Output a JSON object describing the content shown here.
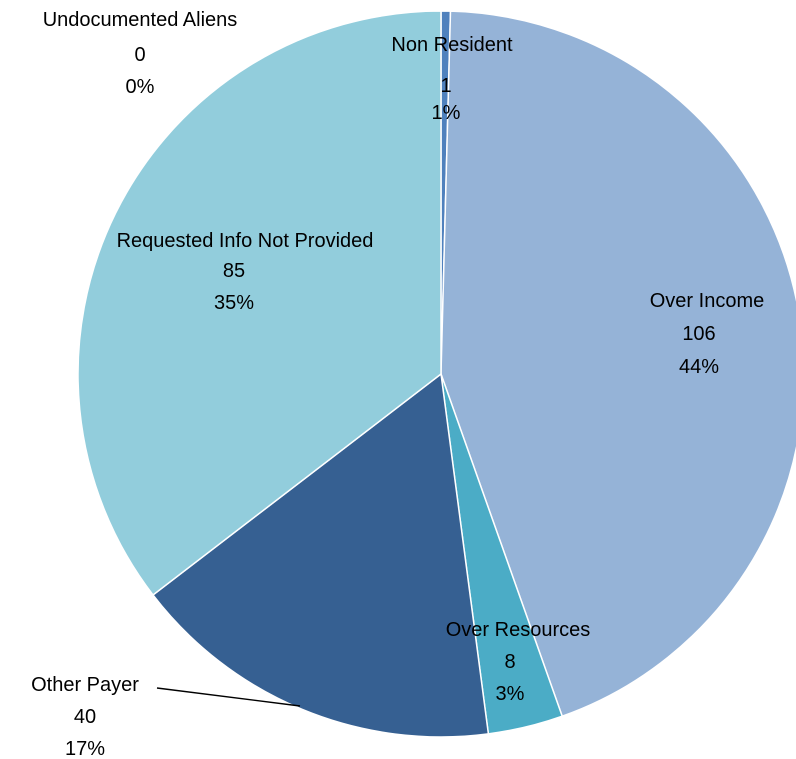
{
  "chart_data": {
    "type": "pie",
    "slices": [
      {
        "name": "Non Resident",
        "value": 1,
        "percent": "1%",
        "color": "#4f81bd"
      },
      {
        "name": "Over Income",
        "value": 106,
        "percent": "44%",
        "color": "#95b3d7"
      },
      {
        "name": "Over Resources",
        "value": 8,
        "percent": "3%",
        "color": "#4bacc6"
      },
      {
        "name": "Other Payer",
        "value": 40,
        "percent": "17%",
        "color": "#366092"
      },
      {
        "name": "Requested Info Not Provided",
        "value": 85,
        "percent": "35%",
        "color": "#92cddc"
      },
      {
        "name": "Undocumented Aliens",
        "value": 0,
        "percent": "0%",
        "color": "#31859c"
      }
    ],
    "start_angle_deg": 0,
    "direction": "clockwise",
    "legend": "none"
  }
}
